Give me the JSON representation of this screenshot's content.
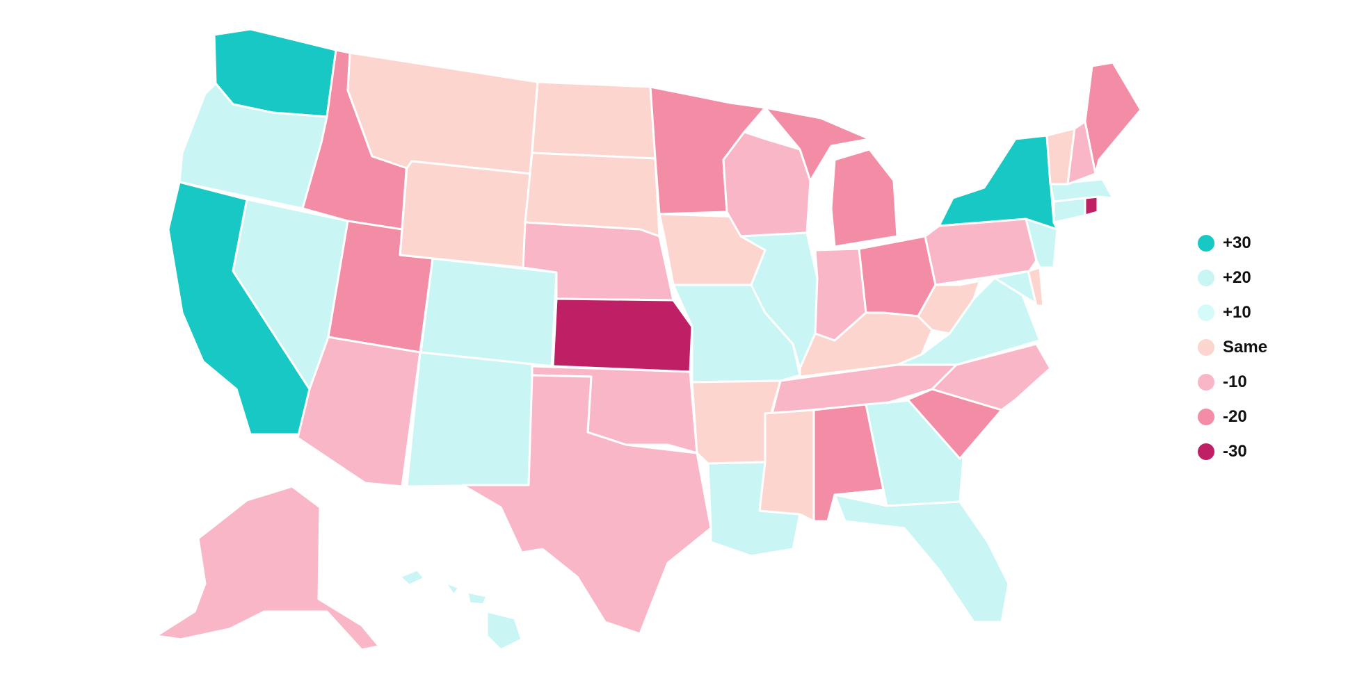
{
  "colors": {
    "+30": "#17c8c4",
    "+20": "#c9f5f5",
    "+10": "#d4fafa",
    "Same": "#fcd5ce",
    "-10": "#f9b6c6",
    "-20": "#f38da5",
    "-30": "#bf1f64"
  },
  "legend": {
    "items": [
      {
        "label": "+30",
        "key": "+30"
      },
      {
        "label": "+20",
        "key": "+20"
      },
      {
        "label": "+10",
        "key": "+10"
      },
      {
        "label": "Same",
        "key": "Same"
      },
      {
        "label": "-10",
        "key": "-10"
      },
      {
        "label": "-20",
        "key": "-20"
      },
      {
        "label": "-30",
        "key": "-30"
      }
    ]
  },
  "states": {
    "WA": "+30",
    "OR": "+20",
    "CA": "+30",
    "NV": "+20",
    "ID": "-20",
    "MT": "Same",
    "WY": "Same",
    "UT": "-20",
    "AZ": "-10",
    "CO": "+20",
    "NM": "+20",
    "ND": "Same",
    "SD": "Same",
    "NE": "-10",
    "KS": "-30",
    "OK": "-10",
    "TX": "-10",
    "MN": "-20",
    "IA": "Same",
    "MO": "+20",
    "AR": "Same",
    "LA": "+20",
    "WI": "-10",
    "IL": "+20",
    "MI": "-20",
    "IN": "-10",
    "OH": "-20",
    "KY": "Same",
    "TN": "-10",
    "MS": "Same",
    "AL": "-20",
    "GA": "+20",
    "FL": "+20",
    "SC": "-20",
    "NC": "-10",
    "VA": "+20",
    "WV": "Same",
    "PA": "-10",
    "NY": "+30",
    "VT": "Same",
    "NH": "-10",
    "ME": "-20",
    "MA": "+20",
    "RI": "-30",
    "CT": "+20",
    "NJ": "+20",
    "DE": "Same",
    "MD": "+20",
    "AK": "-10",
    "HI": "+20"
  }
}
